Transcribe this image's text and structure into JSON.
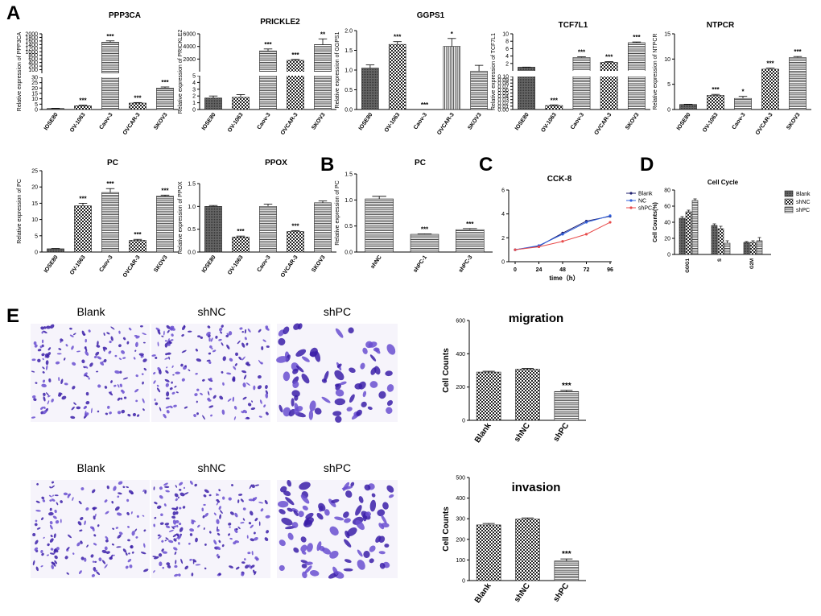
{
  "panel_labels": {
    "A": "A",
    "B": "B",
    "C": "C",
    "D": "D",
    "E": "E"
  },
  "ylabels": {
    "relative_prefix": "Relative expression of",
    "cell_counts": "Cell Counts",
    "cell_counts_pct": "Cell Counts(%)",
    "time_axis": "time（h）"
  },
  "micrograph_labels": {
    "top": [
      "Blank",
      "shNC",
      "shPC"
    ],
    "bottom": [
      "Blank",
      "shNC",
      "shPC"
    ]
  },
  "colors": {
    "stain_dark": "#3b1fa8",
    "stain_mid": "#6a4fd0",
    "blank": "#1f1f6e",
    "nc": "#2f5fdc",
    "shpc": "#e84b4b"
  },
  "chart_data": [
    {
      "id": "ppp3ca",
      "type": "bar",
      "title": "PPP3CA",
      "gene": "PPP3CA",
      "categories": [
        "IOSE80",
        "OV-1063",
        "Caov-3",
        "OVCAR-3",
        "SKOV3"
      ],
      "values": [
        1,
        3.5,
        1600,
        6,
        20
      ],
      "errors": [
        0.2,
        0.5,
        60,
        0.5,
        1
      ],
      "sig": [
        "",
        "***",
        "***",
        "***",
        "***"
      ],
      "patterns": [
        "solid",
        "check",
        "hline",
        "check",
        "hline"
      ],
      "ylim": [
        0,
        2000
      ],
      "upper_ticks": [
        "100",
        "200",
        "400",
        "600",
        "800",
        "1000",
        "1200",
        "1400",
        "1600",
        "1800",
        "2000"
      ],
      "lower_ticks": [
        "0",
        "5",
        "10",
        "15",
        "20",
        "25",
        "30"
      ]
    },
    {
      "id": "prickle2",
      "type": "bar",
      "title": "PRICKLE2",
      "gene": "PRICKLE2",
      "categories": [
        "IOSE80",
        "OV-1063",
        "Caov-3",
        "OVCAR-3",
        "SKOV3"
      ],
      "values": [
        1.7,
        1.8,
        3300,
        1800,
        4300
      ],
      "errors": [
        0.3,
        0.4,
        300,
        150,
        900
      ],
      "sig": [
        "",
        "",
        "***",
        "***",
        "**"
      ],
      "patterns": [
        "solid",
        "check",
        "hline",
        "check",
        "hline"
      ],
      "ylim": [
        0,
        6000
      ],
      "upper_ticks": [
        "2000",
        "4000",
        "6000"
      ],
      "lower_ticks": [
        "0",
        "1",
        "2",
        "3",
        "4",
        "5"
      ]
    },
    {
      "id": "ggps1",
      "type": "bar",
      "title": "GGPS1",
      "gene": "GGPS1",
      "categories": [
        "IOSE80",
        "OV-1063",
        "Caov-3",
        "OVCAR-3",
        "SKOV3"
      ],
      "values": [
        1.05,
        1.65,
        0,
        1.6,
        0.97
      ],
      "errors": [
        0.08,
        0.07,
        0,
        0.2,
        0.15
      ],
      "sig": [
        "",
        "***",
        "***",
        "*",
        ""
      ],
      "patterns": [
        "solid",
        "check",
        "hline",
        "vline",
        "hline"
      ],
      "ylim": [
        0,
        2.0
      ],
      "ticks": [
        "0.0",
        "0.5",
        "1.0",
        "1.5",
        "2.0"
      ]
    },
    {
      "id": "tcf7l1",
      "type": "bar",
      "title": "TCF7L1",
      "gene": "TCF7L1",
      "categories": [
        "IOSE80",
        "OV-1063",
        "Caov-3",
        "OVCAR-3",
        "SKOV3"
      ],
      "values": [
        1,
        0.012,
        3.6,
        2.3,
        7.6
      ],
      "errors": [
        0.02,
        0.002,
        0.2,
        0.2,
        0.2
      ],
      "sig": [
        "",
        "***",
        "***",
        "***",
        "***"
      ],
      "patterns": [
        "solid",
        "check",
        "hline",
        "check",
        "hline"
      ],
      "ylim": [
        0,
        10
      ],
      "upper_ticks": [
        "2",
        "4",
        "6",
        "8",
        "10"
      ],
      "lower_ticks": [
        "0.00",
        "0.01",
        "0.02",
        "0.03",
        "0.04",
        "0.05",
        "0.06",
        "0.07",
        "0.08",
        "0.09",
        "0.10"
      ]
    },
    {
      "id": "ntpcr",
      "type": "bar",
      "title": "NTPCR",
      "gene": "NTPCR",
      "categories": [
        "IOSE80",
        "OV-1063",
        "Caov-3",
        "OVCAR-3",
        "SKOV3"
      ],
      "values": [
        1,
        2.8,
        2.2,
        8,
        10.3
      ],
      "errors": [
        0.05,
        0.2,
        0.4,
        0.2,
        0.2
      ],
      "sig": [
        "",
        "***",
        "*",
        "***",
        "***"
      ],
      "patterns": [
        "solid",
        "check",
        "hline",
        "check",
        "hline"
      ],
      "ylim": [
        0,
        15
      ],
      "ticks": [
        "0",
        "5",
        "10",
        "15"
      ]
    },
    {
      "id": "pc",
      "type": "bar",
      "title": "PC",
      "gene": "PC",
      "categories": [
        "IOSE80",
        "OV-1063",
        "Caov-3",
        "OVCAR-3",
        "SKOV3"
      ],
      "values": [
        1,
        14.2,
        18.3,
        3.6,
        17.2
      ],
      "errors": [
        0.1,
        0.8,
        1.2,
        0.3,
        0.3
      ],
      "sig": [
        "",
        "***",
        "***",
        "***",
        "***"
      ],
      "patterns": [
        "solid",
        "check",
        "hline",
        "check",
        "hline"
      ],
      "ylim": [
        0,
        25
      ],
      "ticks": [
        "0",
        "5",
        "10",
        "15",
        "20",
        "25"
      ]
    },
    {
      "id": "ppox",
      "type": "bar",
      "title": "PPOX",
      "gene": "PPOX",
      "categories": [
        "IOSE80",
        "OV-1063",
        "Caov-3",
        "OVCAR-3",
        "SKOV3"
      ],
      "values": [
        1.0,
        0.33,
        1.0,
        0.45,
        1.08
      ],
      "errors": [
        0.02,
        0.02,
        0.05,
        0.02,
        0.04
      ],
      "sig": [
        "",
        "***",
        "",
        "***",
        ""
      ],
      "patterns": [
        "solid",
        "check",
        "hline",
        "check",
        "hline"
      ],
      "ylim": [
        0,
        1.5
      ],
      "ticks": [
        "0.0",
        "0.5",
        "1.0",
        "1.5"
      ]
    },
    {
      "id": "pcB",
      "type": "bar",
      "title": "PC",
      "gene": "PC",
      "categories": [
        "shNC",
        "shPC-1",
        "shPC-3"
      ],
      "values": [
        1.02,
        0.34,
        0.43
      ],
      "errors": [
        0.05,
        0.01,
        0.02
      ],
      "sig": [
        "",
        "***",
        "***"
      ],
      "patterns": [
        "hline",
        "hline",
        "hline"
      ],
      "ylim": [
        0,
        1.5
      ],
      "ticks": [
        "0.0",
        "0.5",
        "1.0",
        "1.5"
      ]
    },
    {
      "id": "cck8",
      "type": "line",
      "title": "CCK-8",
      "xlabel": "time（h）",
      "ylabel": "",
      "x": [
        0,
        24,
        48,
        72,
        96
      ],
      "ylim": [
        0,
        6
      ],
      "yticks": [
        "0",
        "2",
        "4",
        "6"
      ],
      "xticks": [
        "0",
        "24",
        "48",
        "72",
        "96"
      ],
      "series": [
        {
          "name": "Blank",
          "values": [
            1,
            1.3,
            2.4,
            3.4,
            3.8
          ]
        },
        {
          "name": "NC",
          "values": [
            1,
            1.35,
            2.3,
            3.3,
            3.85
          ]
        },
        {
          "name": "shPC",
          "values": [
            1,
            1.25,
            1.7,
            2.3,
            3.3
          ]
        }
      ]
    },
    {
      "id": "cellcycle",
      "type": "bar",
      "title": "Cell Cycle",
      "ylabel": "Cell Counts(%)",
      "categories": [
        "G0/G1",
        "S",
        "G2M"
      ],
      "ylim": [
        0,
        80
      ],
      "ticks": [
        "0",
        "20",
        "40",
        "60",
        "80"
      ],
      "series": [
        {
          "name": "Blank",
          "values": [
            45,
            36,
            15
          ]
        },
        {
          "name": "shNC",
          "values": [
            53,
            32,
            15
          ]
        },
        {
          "name": "shPC",
          "values": [
            67,
            14,
            17
          ]
        }
      ],
      "errors": [
        [
          2,
          2,
          1
        ],
        [
          2,
          3,
          2
        ],
        [
          2,
          3,
          4
        ]
      ]
    },
    {
      "id": "migration",
      "type": "bar",
      "title": "migration",
      "ylabel": "Cell Counts",
      "categories": [
        "Blank",
        "shNC",
        "shPC"
      ],
      "values": [
        290,
        307,
        173
      ],
      "errors": [
        5,
        5,
        7
      ],
      "sig": [
        "",
        "",
        "***"
      ],
      "patterns": [
        "check",
        "check",
        "hline"
      ],
      "ylim": [
        0,
        600
      ],
      "ticks": [
        "0",
        "200",
        "400",
        "600"
      ]
    },
    {
      "id": "invasion",
      "type": "bar",
      "title": "invasion",
      "ylabel": "Cell Counts",
      "categories": [
        "Blank",
        "shNC",
        "shPC"
      ],
      "values": [
        270,
        298,
        95
      ],
      "errors": [
        7,
        6,
        10
      ],
      "sig": [
        "",
        "",
        "***"
      ],
      "patterns": [
        "check",
        "check",
        "hline"
      ],
      "ylim": [
        0,
        500
      ],
      "ticks": [
        "0",
        "100",
        "200",
        "300",
        "400",
        "500"
      ]
    }
  ]
}
